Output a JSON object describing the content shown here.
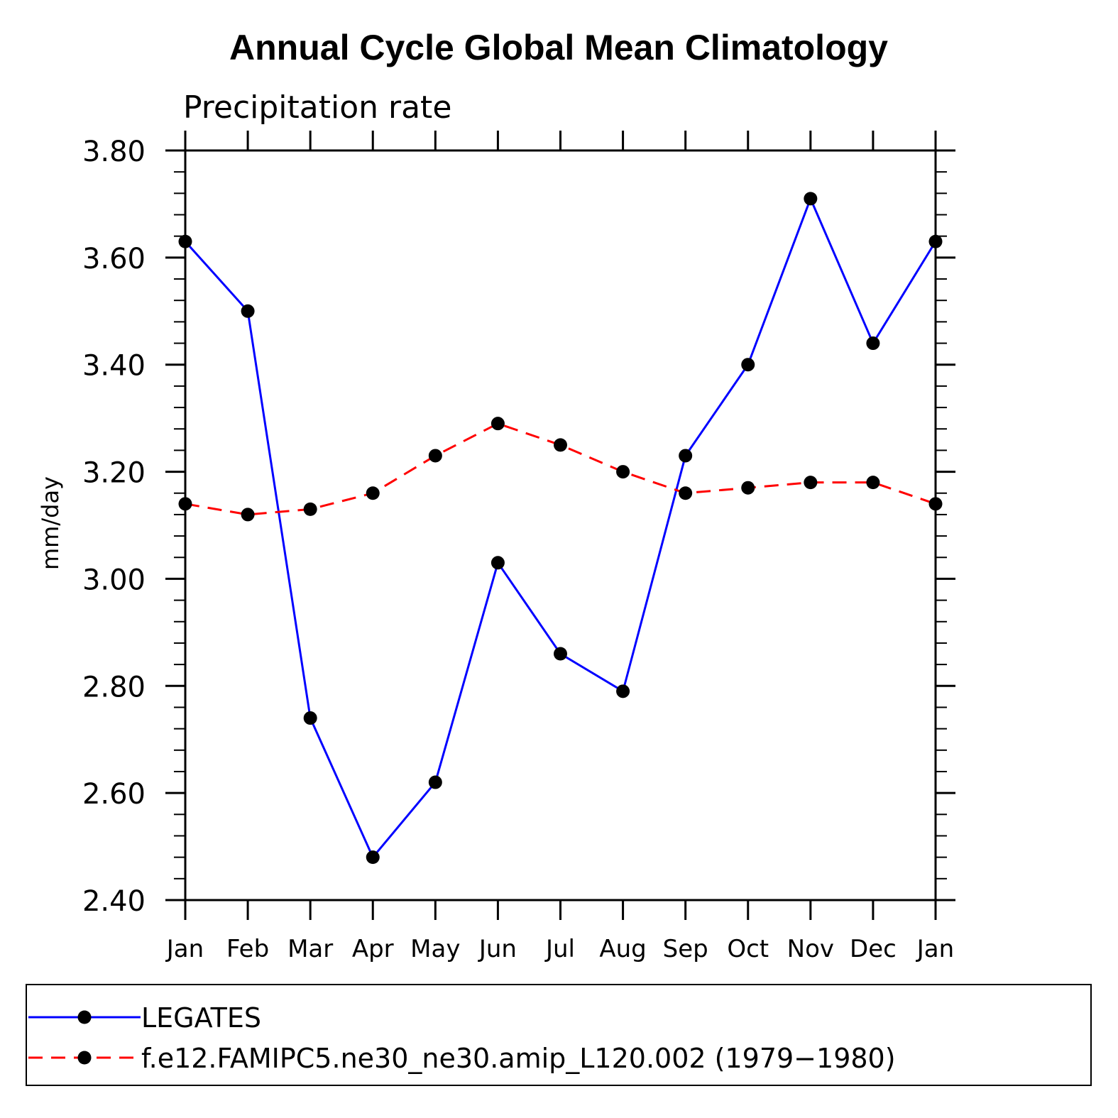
{
  "chart_data": {
    "type": "line",
    "title": "Annual Cycle Global Mean Climatology",
    "subtitle": "Precipitation rate",
    "xlabel": "",
    "ylabel": "mm/day",
    "categories": [
      "Jan",
      "Feb",
      "Mar",
      "Apr",
      "May",
      "Jun",
      "Jul",
      "Aug",
      "Sep",
      "Oct",
      "Nov",
      "Dec",
      "Jan"
    ],
    "ylim": [
      2.4,
      3.8
    ],
    "yticks": [
      "2.40",
      "2.60",
      "2.80",
      "3.00",
      "3.20",
      "3.40",
      "3.60",
      "3.80"
    ],
    "series": [
      {
        "name": "LEGATES",
        "color": "#0000ff",
        "dash": "solid",
        "values": [
          3.63,
          3.5,
          2.74,
          2.48,
          2.62,
          3.03,
          2.86,
          2.79,
          3.23,
          3.4,
          3.71,
          3.44,
          3.63
        ]
      },
      {
        "name": "f.e12.FAMIPC5.ne30_ne30.amip_L120.002 (1979−1980)",
        "color": "#ff0000",
        "dash": "dashed",
        "values": [
          3.14,
          3.12,
          3.13,
          3.16,
          3.23,
          3.29,
          3.25,
          3.2,
          3.16,
          3.17,
          3.18,
          3.18,
          3.14
        ]
      }
    ],
    "marker_color": "#000000",
    "legend_position": "bottom"
  }
}
